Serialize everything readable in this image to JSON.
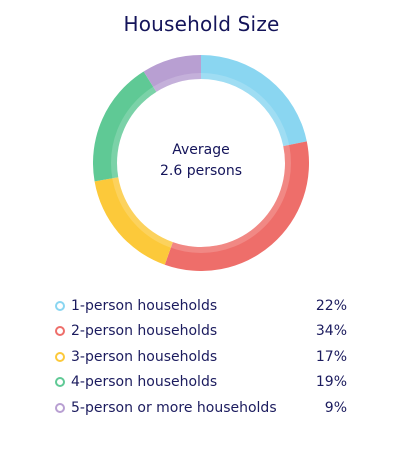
{
  "title": "Household Size",
  "center": {
    "line1": "Average",
    "line2": "2.6 persons"
  },
  "chart_data": {
    "type": "pie",
    "title": "Household Size",
    "categories": [
      "1-person households",
      "2-person households",
      "3-person households",
      "4-person households",
      "5-person or more households"
    ],
    "values": [
      22,
      34,
      17,
      19,
      9
    ],
    "value_labels": [
      "22%",
      "34%",
      "17%",
      "19%",
      "9%"
    ],
    "colors": [
      "#8ad6f1",
      "#ee6e6a",
      "#fcc93a",
      "#5fc995",
      "#b89fd2"
    ],
    "legend_placement": "bottom"
  }
}
